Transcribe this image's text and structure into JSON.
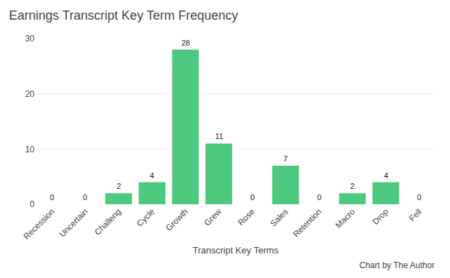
{
  "chart_data": {
    "type": "bar",
    "title": "Earnings Transcript Key Term Frequency",
    "categories": [
      "Recession",
      "Uncertain",
      "Challeng",
      "Cycle",
      "Growth",
      "Grew",
      "Rose",
      "Sales",
      "Retention",
      "Macro",
      "Drop",
      "Fell"
    ],
    "values": [
      0,
      0,
      2,
      4,
      28,
      11,
      0,
      7,
      0,
      2,
      4,
      0
    ],
    "color": "#4dc87f",
    "xlabel": "Transcript Key Terms",
    "annotations": [
      "Chart by The Author"
    ],
    "ylim": [
      0,
      30
    ],
    "yticks": [
      0,
      10,
      20,
      30
    ],
    "grid": true,
    "data_labels": true
  }
}
